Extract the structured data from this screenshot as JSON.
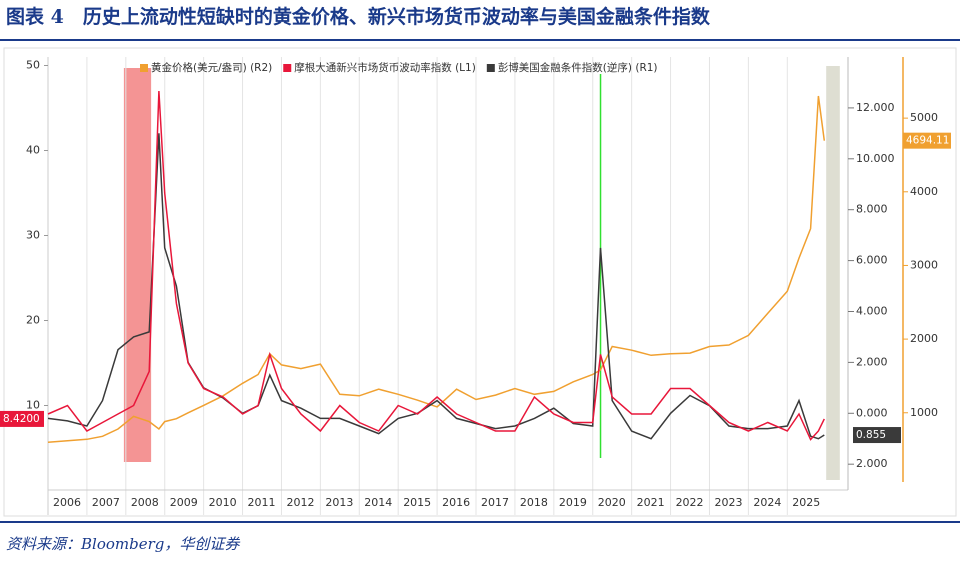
{
  "chart_data": {
    "type": "line",
    "title": "图表 4　历史上流动性短缺时的黄金价格、新兴市场货币波动率与美国金融条件指数",
    "source": "资料来源：Bloomberg，华创证券",
    "x": [
      2006.0,
      2006.5,
      2007.0,
      2007.4,
      2007.8,
      2008.2,
      2008.6,
      2008.85,
      2009.0,
      2009.3,
      2009.6,
      2010.0,
      2010.5,
      2011.0,
      2011.4,
      2011.7,
      2012.0,
      2012.5,
      2013.0,
      2013.5,
      2014.0,
      2014.5,
      2015.0,
      2015.5,
      2016.0,
      2016.5,
      2017.0,
      2017.5,
      2018.0,
      2018.5,
      2019.0,
      2019.5,
      2020.0,
      2020.2,
      2020.5,
      2021.0,
      2021.5,
      2022.0,
      2022.5,
      2023.0,
      2023.5,
      2024.0,
      2024.5,
      2025.0,
      2025.3,
      2025.6,
      2025.8,
      2025.95
    ],
    "xlim": [
      2006,
      2026.56
    ],
    "xticks": [
      {
        "value": 2006,
        "label": "2006"
      },
      {
        "value": 2007,
        "label": "2007"
      },
      {
        "value": 2008,
        "label": "2008"
      },
      {
        "value": 2009,
        "label": "2009"
      },
      {
        "value": 2010,
        "label": "2010"
      },
      {
        "value": 2011,
        "label": "2011"
      },
      {
        "value": 2012,
        "label": "2012"
      },
      {
        "value": 2013,
        "label": "2013"
      },
      {
        "value": 2014,
        "label": "2014"
      },
      {
        "value": 2015,
        "label": "2015"
      },
      {
        "value": 2016,
        "label": "2016"
      },
      {
        "value": 2017,
        "label": "2017"
      },
      {
        "value": 2018,
        "label": "2018"
      },
      {
        "value": 2019,
        "label": "2019"
      },
      {
        "value": 2020,
        "label": "2020"
      },
      {
        "value": 2021,
        "label": "2021"
      },
      {
        "value": 2022,
        "label": "2022"
      },
      {
        "value": 2023,
        "label": "2023"
      },
      {
        "value": 2024,
        "label": "2024"
      },
      {
        "value": 2025,
        "label": "2025"
      }
    ],
    "ylim": [
      1,
      51
    ],
    "yticks": [
      10,
      20,
      30,
      40,
      50
    ],
    "y2lim": [
      2.7,
      -14
    ],
    "y2ticks": [
      {
        "value": -12,
        "label": "12.000"
      },
      {
        "value": -10,
        "label": "10.000"
      },
      {
        "value": -8,
        "label": "8.000"
      },
      {
        "value": -6,
        "label": "6.000"
      },
      {
        "value": -4,
        "label": "4.000"
      },
      {
        "value": -2,
        "label": "2.000"
      },
      {
        "value": 0,
        "label": "0.000"
      },
      {
        "value": 2,
        "label": "2.000"
      }
    ],
    "y3lim": [
      60,
      5830
    ],
    "y3ticks": [
      1000,
      2000,
      3000,
      4000,
      5000
    ],
    "grid": true,
    "series": [
      {
        "name": "黄金价格(美元/盎司) (R2)",
        "color": "#f0a030",
        "axis": "y3",
        "values": [
          600,
          620,
          640,
          680,
          780,
          950,
          880,
          780,
          880,
          920,
          1000,
          1100,
          1230,
          1400,
          1520,
          1800,
          1650,
          1600,
          1660,
          1250,
          1230,
          1320,
          1250,
          1170,
          1080,
          1320,
          1180,
          1240,
          1330,
          1250,
          1290,
          1420,
          1520,
          1580,
          1900,
          1850,
          1780,
          1800,
          1810,
          1900,
          1920,
          2050,
          2350,
          2650,
          3100,
          3500,
          5300,
          4694.11
        ],
        "last_label": "4694.11"
      },
      {
        "name": "摩根大通新兴市场货币波动率指数 (L1)",
        "color": "#e8173a",
        "axis": "y",
        "values": [
          9,
          10,
          7,
          8,
          9,
          10,
          14,
          47,
          35,
          22,
          15,
          12,
          11,
          9,
          10,
          16,
          12,
          9,
          7,
          10,
          8,
          7,
          10,
          9,
          11,
          9,
          8,
          7,
          7,
          11,
          9,
          8,
          8,
          16,
          11,
          9,
          9,
          12,
          12,
          10,
          8,
          7,
          8,
          7,
          9,
          6,
          7,
          8.42
        ],
        "last_label": "8.4200"
      },
      {
        "name": "彭博美国金融条件指数(逆序) (R1)",
        "color": "#3a3a3a",
        "axis": "y2",
        "values": [
          0.2,
          0.3,
          0.5,
          -0.5,
          -2.5,
          -3,
          -3.2,
          -11,
          -6.5,
          -5,
          -2,
          -1,
          -0.6,
          0,
          -0.3,
          -1.5,
          -0.5,
          -0.2,
          0.2,
          0.2,
          0.5,
          0.8,
          0.2,
          0,
          -0.5,
          0.2,
          0.4,
          0.6,
          0.5,
          0.2,
          -0.2,
          0.4,
          0.5,
          -6.5,
          -0.5,
          0.7,
          1.0,
          0,
          -0.7,
          -0.3,
          0.5,
          0.6,
          0.6,
          0.5,
          -0.5,
          0.9,
          1.0,
          0.855
        ],
        "last_label": "0.855"
      }
    ],
    "shaded_regions": [
      {
        "x": [
          2007.95,
          2008.65
        ],
        "color": "#f07070"
      },
      {
        "x": [
          2026.0,
          2026.35
        ],
        "color": "#c8c8b4"
      }
    ],
    "marker_lines": [
      {
        "x": 2020.2,
        "color": "#30e030"
      }
    ]
  }
}
